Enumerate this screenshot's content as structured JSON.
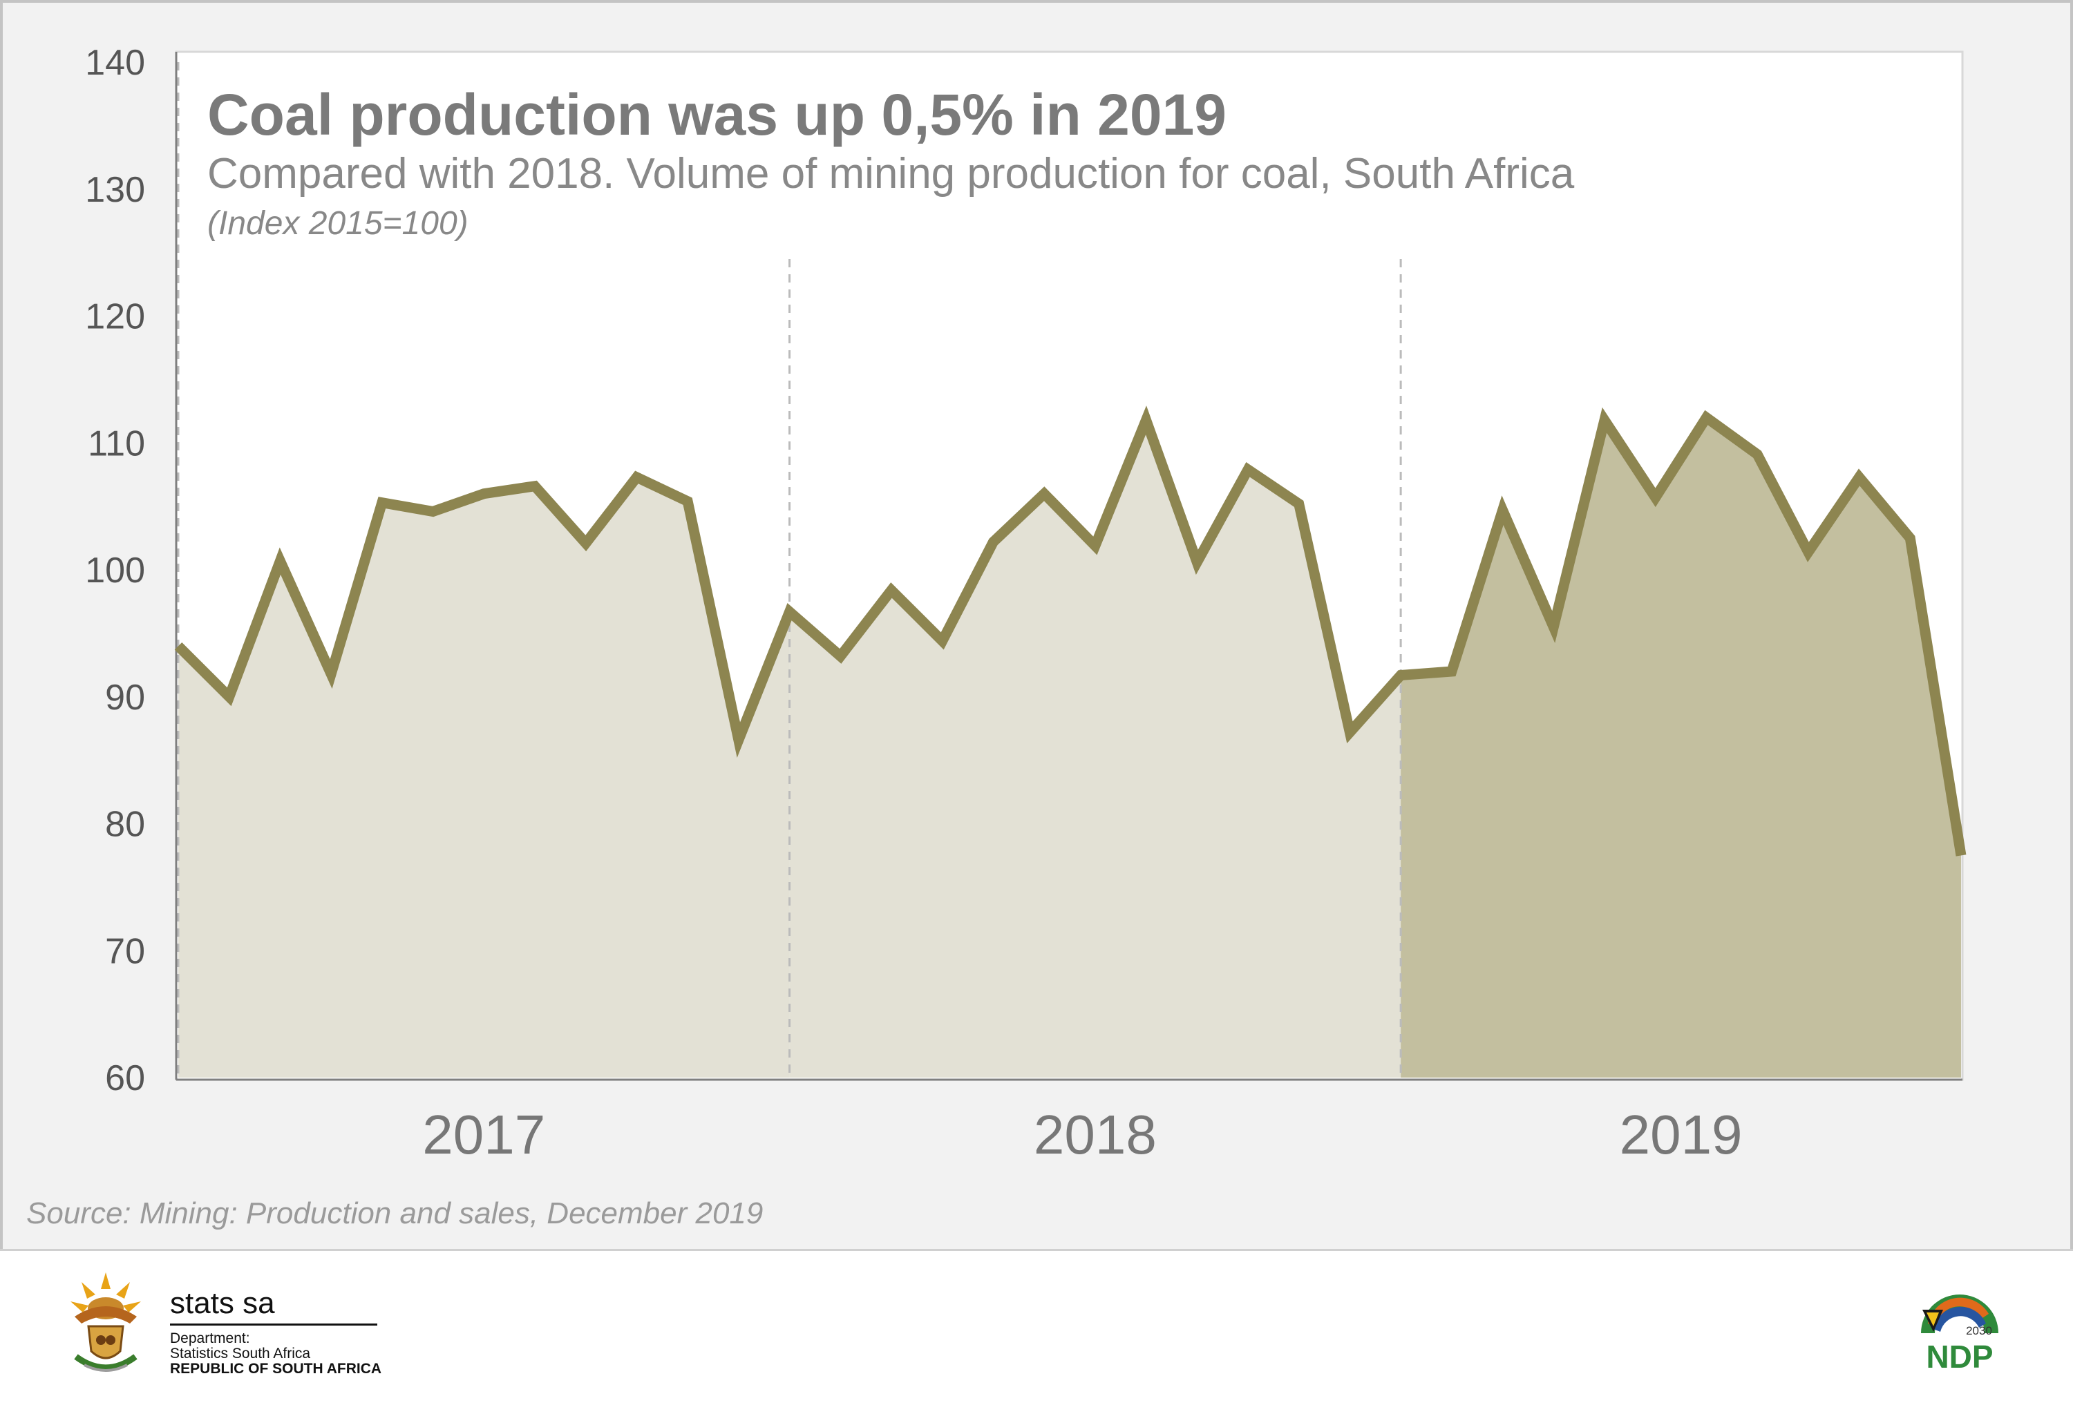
{
  "chart_data": {
    "type": "area",
    "title": "Coal production was up 0,5% in 2019",
    "subtitle": "Compared with 2018. Volume of mining production for coal, South Africa",
    "note": "(Index 2015=100)",
    "xlabel": "",
    "ylabel": "",
    "ylim": [
      60,
      140
    ],
    "y_ticks": [
      "140",
      "130",
      "120",
      "110",
      "100",
      "90",
      "80",
      "70",
      "60"
    ],
    "grid": false,
    "years": [
      "2017",
      "2018",
      "2019"
    ],
    "series": [
      {
        "name": "2017",
        "values": [
          94.0,
          90.0,
          100.7,
          91.8,
          105.3,
          104.6,
          106.0,
          106.6,
          102.1,
          107.3,
          105.4,
          86.6
        ]
      },
      {
        "name": "2018",
        "values": [
          96.7,
          93.2,
          98.4,
          94.4,
          102.2,
          106.0,
          101.9,
          111.8,
          100.6,
          107.9,
          105.2,
          87.2
        ]
      },
      {
        "name": "2019",
        "values": [
          91.7,
          92.0,
          104.7,
          95.5,
          111.8,
          105.7,
          112.0,
          109.1,
          101.4,
          107.3,
          102.5,
          77.5
        ]
      }
    ]
  },
  "colors": {
    "line": "#8d8550",
    "fill_past": "#e3e1d5",
    "fill_current": "#c3bf9f",
    "divider": "#bbbbbb"
  },
  "source": "Source: Mining: Production and sales, December 2019",
  "footer": {
    "brand": "stats sa",
    "dept_label": "Department:",
    "dept_name": "Statistics South Africa",
    "republic": "REPUBLIC OF SOUTH AFRICA",
    "ndp_text": "NDP",
    "ndp_year": "2030"
  }
}
